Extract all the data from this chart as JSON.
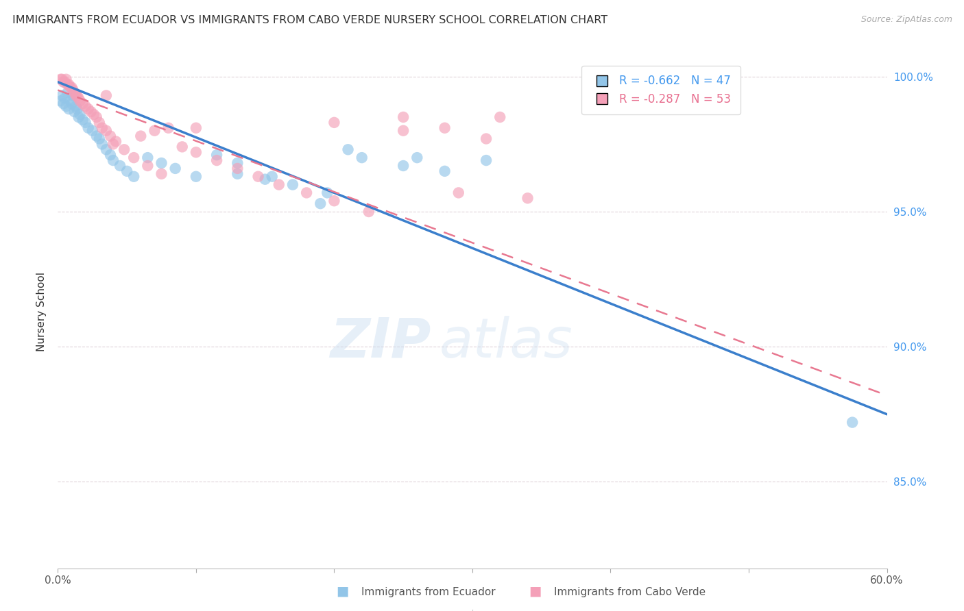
{
  "title": "IMMIGRANTS FROM ECUADOR VS IMMIGRANTS FROM CABO VERDE NURSERY SCHOOL CORRELATION CHART",
  "source": "Source: ZipAtlas.com",
  "ylabel": "Nursery School",
  "legend_ecuador": "R = -0.662   N = 47",
  "legend_caboverde": "R = -0.287   N = 53",
  "xmin": 0.0,
  "xmax": 0.6,
  "ymin": 0.818,
  "ymax": 1.008,
  "yticks": [
    0.85,
    0.9,
    0.95,
    1.0
  ],
  "ytick_labels": [
    "85.0%",
    "90.0%",
    "95.0%",
    "100.0%"
  ],
  "xticks": [
    0.0,
    0.1,
    0.2,
    0.3,
    0.4,
    0.5,
    0.6
  ],
  "xtick_labels": [
    "0.0%",
    "",
    "",
    "",
    "",
    "",
    "60.0%"
  ],
  "ecuador_color": "#92C5E8",
  "caboverde_color": "#F4A0B8",
  "ecuador_line_color": "#3B7FCC",
  "caboverde_line_color": "#E87890",
  "grid_color": "#D8C8D0",
  "background_color": "#FFFFFF",
  "watermark_zip": "ZIP",
  "watermark_atlas": "atlas",
  "ecuador_x": [
    0.002,
    0.003,
    0.004,
    0.005,
    0.006,
    0.007,
    0.008,
    0.009,
    0.01,
    0.011,
    0.012,
    0.013,
    0.014,
    0.015,
    0.016,
    0.018,
    0.02,
    0.022,
    0.025,
    0.028,
    0.03,
    0.032,
    0.035,
    0.038,
    0.04,
    0.045,
    0.05,
    0.055,
    0.065,
    0.075,
    0.085,
    0.1,
    0.115,
    0.13,
    0.15,
    0.17,
    0.195,
    0.22,
    0.25,
    0.28,
    0.19,
    0.26,
    0.31,
    0.21,
    0.155,
    0.575,
    0.13
  ],
  "ecuador_y": [
    0.991,
    0.993,
    0.99,
    0.992,
    0.989,
    0.994,
    0.988,
    0.991,
    0.99,
    0.993,
    0.987,
    0.989,
    0.988,
    0.985,
    0.986,
    0.984,
    0.983,
    0.981,
    0.98,
    0.978,
    0.977,
    0.975,
    0.973,
    0.971,
    0.969,
    0.967,
    0.965,
    0.963,
    0.97,
    0.968,
    0.966,
    0.963,
    0.971,
    0.964,
    0.962,
    0.96,
    0.957,
    0.97,
    0.967,
    0.965,
    0.953,
    0.97,
    0.969,
    0.973,
    0.963,
    0.872,
    0.968
  ],
  "caboverde_x": [
    0.002,
    0.003,
    0.004,
    0.005,
    0.006,
    0.007,
    0.008,
    0.009,
    0.01,
    0.011,
    0.012,
    0.013,
    0.014,
    0.015,
    0.016,
    0.018,
    0.02,
    0.022,
    0.024,
    0.026,
    0.028,
    0.03,
    0.032,
    0.035,
    0.038,
    0.042,
    0.048,
    0.055,
    0.065,
    0.075,
    0.08,
    0.09,
    0.1,
    0.115,
    0.13,
    0.145,
    0.16,
    0.18,
    0.2,
    0.225,
    0.25,
    0.28,
    0.31,
    0.34,
    0.2,
    0.25,
    0.29,
    0.32,
    0.07,
    0.1,
    0.06,
    0.04,
    0.035
  ],
  "caboverde_y": [
    0.999,
    0.999,
    0.998,
    0.998,
    0.999,
    0.997,
    0.997,
    0.996,
    0.996,
    0.995,
    0.994,
    0.993,
    0.993,
    0.992,
    0.991,
    0.99,
    0.989,
    0.988,
    0.987,
    0.986,
    0.985,
    0.983,
    0.981,
    0.98,
    0.978,
    0.976,
    0.973,
    0.97,
    0.967,
    0.964,
    0.981,
    0.974,
    0.972,
    0.969,
    0.966,
    0.963,
    0.96,
    0.957,
    0.954,
    0.95,
    0.985,
    0.981,
    0.977,
    0.955,
    0.983,
    0.98,
    0.957,
    0.985,
    0.98,
    0.981,
    0.978,
    0.975,
    0.993
  ],
  "ec_line_x0": 0.0,
  "ec_line_y0": 0.998,
  "ec_line_x1": 0.6,
  "ec_line_y1": 0.875,
  "cv_line_x0": 0.0,
  "cv_line_y0": 0.995,
  "cv_line_x1": 0.6,
  "cv_line_y1": 0.882
}
